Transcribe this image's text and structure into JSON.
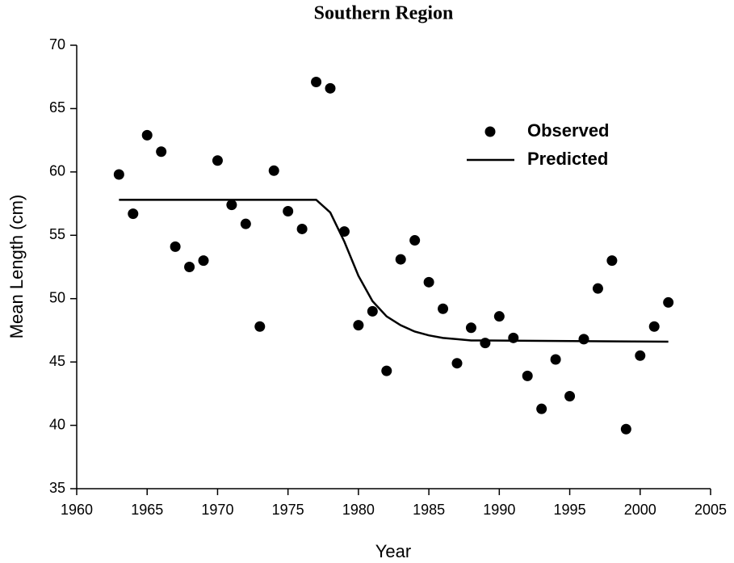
{
  "chart_data": {
    "type": "scatter",
    "title": "Southern Region",
    "xlabel": "Year",
    "ylabel": "Mean Length (cm)",
    "xlim": [
      1960,
      2005
    ],
    "xticks": [
      1960,
      1965,
      1970,
      1975,
      1980,
      1985,
      1990,
      1995,
      2000,
      2005
    ],
    "ylim": [
      35,
      70
    ],
    "yticks": [
      35,
      40,
      45,
      50,
      55,
      60,
      65,
      70
    ],
    "series": [
      {
        "name": "Observed",
        "color": "#000000",
        "mode": "markers",
        "x": [
          1963,
          1964,
          1965,
          1966,
          1967,
          1968,
          1969,
          1970,
          1971,
          1972,
          1973,
          1974,
          1975,
          1976,
          1977,
          1978,
          1979,
          1980,
          1981,
          1982,
          1983,
          1984,
          1985,
          1986,
          1987,
          1988,
          1989,
          1990,
          1991,
          1992,
          1993,
          1994,
          1995,
          1996,
          1997,
          1998,
          1999,
          2000,
          2001,
          2002
        ],
        "values": [
          59.8,
          56.7,
          62.9,
          61.6,
          54.1,
          52.5,
          53.0,
          60.9,
          57.4,
          55.9,
          47.8,
          60.1,
          56.9,
          55.5,
          67.1,
          66.6,
          55.3,
          47.9,
          49.0,
          44.3,
          53.1,
          54.6,
          51.3,
          49.2,
          44.9,
          47.7,
          46.5,
          48.6,
          46.9,
          43.9,
          41.3,
          45.2,
          42.3,
          46.8,
          50.8,
          53.0,
          39.7,
          45.5,
          47.8,
          49.7
        ]
      },
      {
        "name": "Predicted",
        "color": "#000000",
        "mode": "line",
        "x": [
          1963,
          1977,
          1978,
          1979,
          1980,
          1981,
          1982,
          1983,
          1984,
          1985,
          1986,
          1987,
          1988,
          1989,
          2002
        ],
        "values": [
          57.8,
          57.8,
          56.8,
          54.5,
          51.8,
          49.8,
          48.6,
          47.9,
          47.4,
          47.1,
          46.9,
          46.8,
          46.7,
          46.7,
          46.6
        ]
      }
    ],
    "legend": "upper right"
  }
}
